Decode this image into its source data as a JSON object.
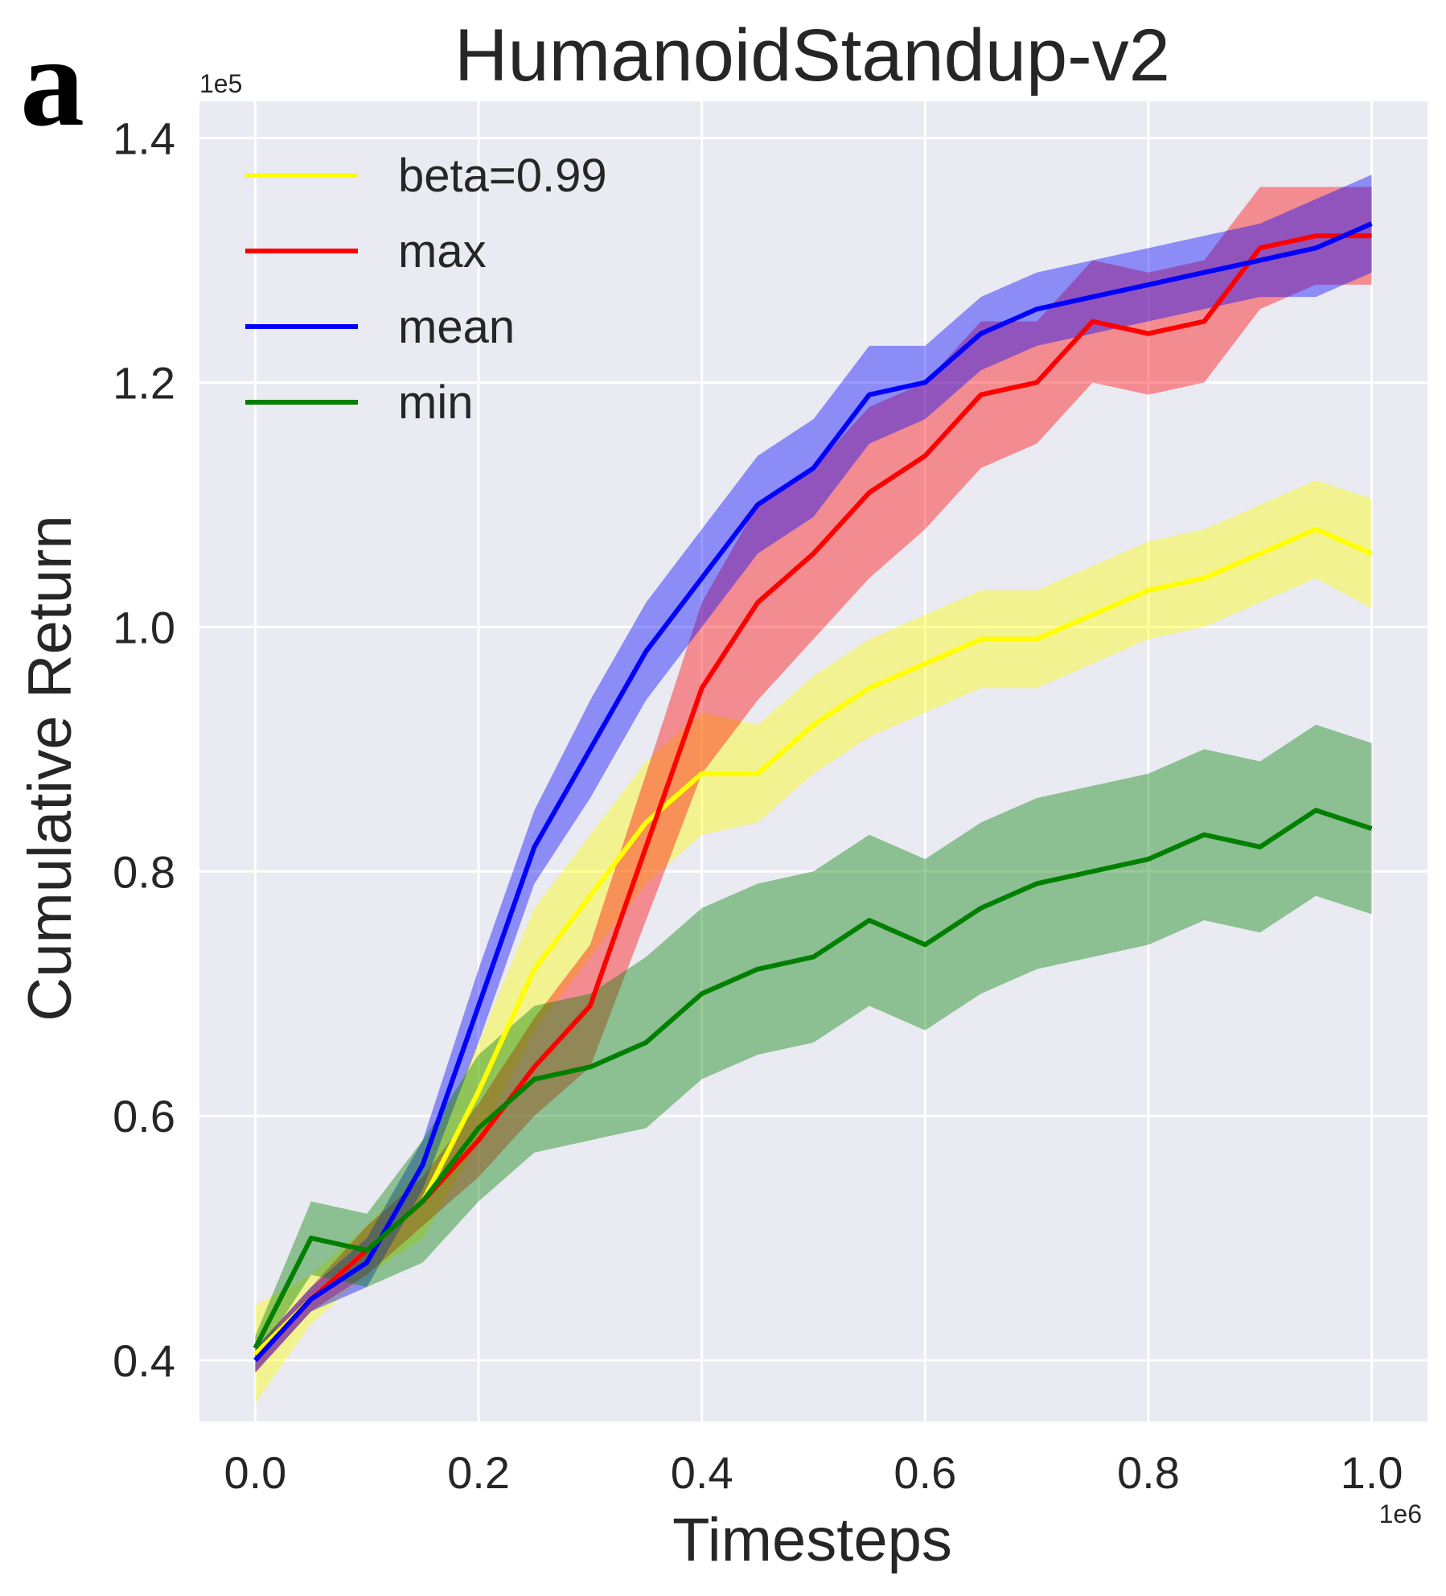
{
  "panel_label": "a",
  "colors": {
    "background": "#eaeaf2",
    "grid": "#ffffff",
    "text": "#262626"
  },
  "chart_data": {
    "type": "line",
    "title": "HumanoidStandup-v2",
    "xlabel": "Timesteps",
    "ylabel": "Cumulative Return",
    "x_offset_text": "1e6",
    "y_offset_text": "1e5",
    "xlim": [
      -0.05,
      1.05
    ],
    "ylim": [
      0.35,
      1.43
    ],
    "xticks": [
      0.0,
      0.2,
      0.4,
      0.6,
      0.8,
      1.0
    ],
    "xtick_labels": [
      "0.0",
      "0.2",
      "0.4",
      "0.6",
      "0.8",
      "1.0"
    ],
    "yticks": [
      0.4,
      0.6,
      0.8,
      1.0,
      1.2,
      1.4
    ],
    "ytick_labels": [
      "0.4",
      "0.6",
      "0.8",
      "1.0",
      "1.2",
      "1.4"
    ],
    "legend_position": "top-left",
    "x": [
      0.0,
      0.05,
      0.1,
      0.15,
      0.2,
      0.25,
      0.3,
      0.35,
      0.4,
      0.45,
      0.5,
      0.55,
      0.6,
      0.65,
      0.7,
      0.75,
      0.8,
      0.85,
      0.9,
      0.95,
      1.0
    ],
    "series": [
      {
        "name": "beta=0.99",
        "color": "#ffff00",
        "values": [
          0.405,
          0.45,
          0.49,
          0.53,
          0.62,
          0.72,
          0.78,
          0.84,
          0.88,
          0.88,
          0.92,
          0.95,
          0.97,
          0.99,
          0.99,
          1.01,
          1.03,
          1.04,
          1.06,
          1.08,
          1.06
        ],
        "band": [
          0.04,
          0.02,
          0.02,
          0.03,
          0.04,
          0.05,
          0.05,
          0.05,
          0.05,
          0.04,
          0.04,
          0.04,
          0.04,
          0.04,
          0.04,
          0.04,
          0.04,
          0.04,
          0.04,
          0.04,
          0.045
        ]
      },
      {
        "name": "max",
        "color": "#ff0000",
        "values": [
          0.4,
          0.45,
          0.49,
          0.53,
          0.58,
          0.64,
          0.69,
          0.82,
          0.95,
          1.02,
          1.06,
          1.11,
          1.14,
          1.19,
          1.2,
          1.25,
          1.24,
          1.25,
          1.31,
          1.32,
          1.32
        ],
        "band": [
          0.01,
          0.01,
          0.02,
          0.02,
          0.03,
          0.04,
          0.05,
          0.06,
          0.07,
          0.08,
          0.07,
          0.07,
          0.06,
          0.06,
          0.05,
          0.05,
          0.05,
          0.05,
          0.05,
          0.04,
          0.04
        ]
      },
      {
        "name": "mean",
        "color": "#0000ff",
        "values": [
          0.4,
          0.45,
          0.48,
          0.56,
          0.69,
          0.82,
          0.9,
          0.98,
          1.04,
          1.1,
          1.13,
          1.19,
          1.2,
          1.24,
          1.26,
          1.27,
          1.28,
          1.29,
          1.3,
          1.31,
          1.33
        ],
        "band": [
          0.01,
          0.01,
          0.02,
          0.02,
          0.03,
          0.03,
          0.04,
          0.04,
          0.04,
          0.04,
          0.04,
          0.04,
          0.03,
          0.03,
          0.03,
          0.03,
          0.03,
          0.03,
          0.03,
          0.04,
          0.04
        ]
      },
      {
        "name": "min",
        "color": "#008000",
        "values": [
          0.41,
          0.5,
          0.49,
          0.53,
          0.59,
          0.63,
          0.64,
          0.66,
          0.7,
          0.72,
          0.73,
          0.76,
          0.74,
          0.77,
          0.79,
          0.8,
          0.81,
          0.83,
          0.82,
          0.85,
          0.835
        ],
        "band": [
          0.01,
          0.03,
          0.03,
          0.05,
          0.06,
          0.06,
          0.06,
          0.07,
          0.07,
          0.07,
          0.07,
          0.07,
          0.07,
          0.07,
          0.07,
          0.07,
          0.07,
          0.07,
          0.07,
          0.07,
          0.07
        ]
      }
    ]
  }
}
